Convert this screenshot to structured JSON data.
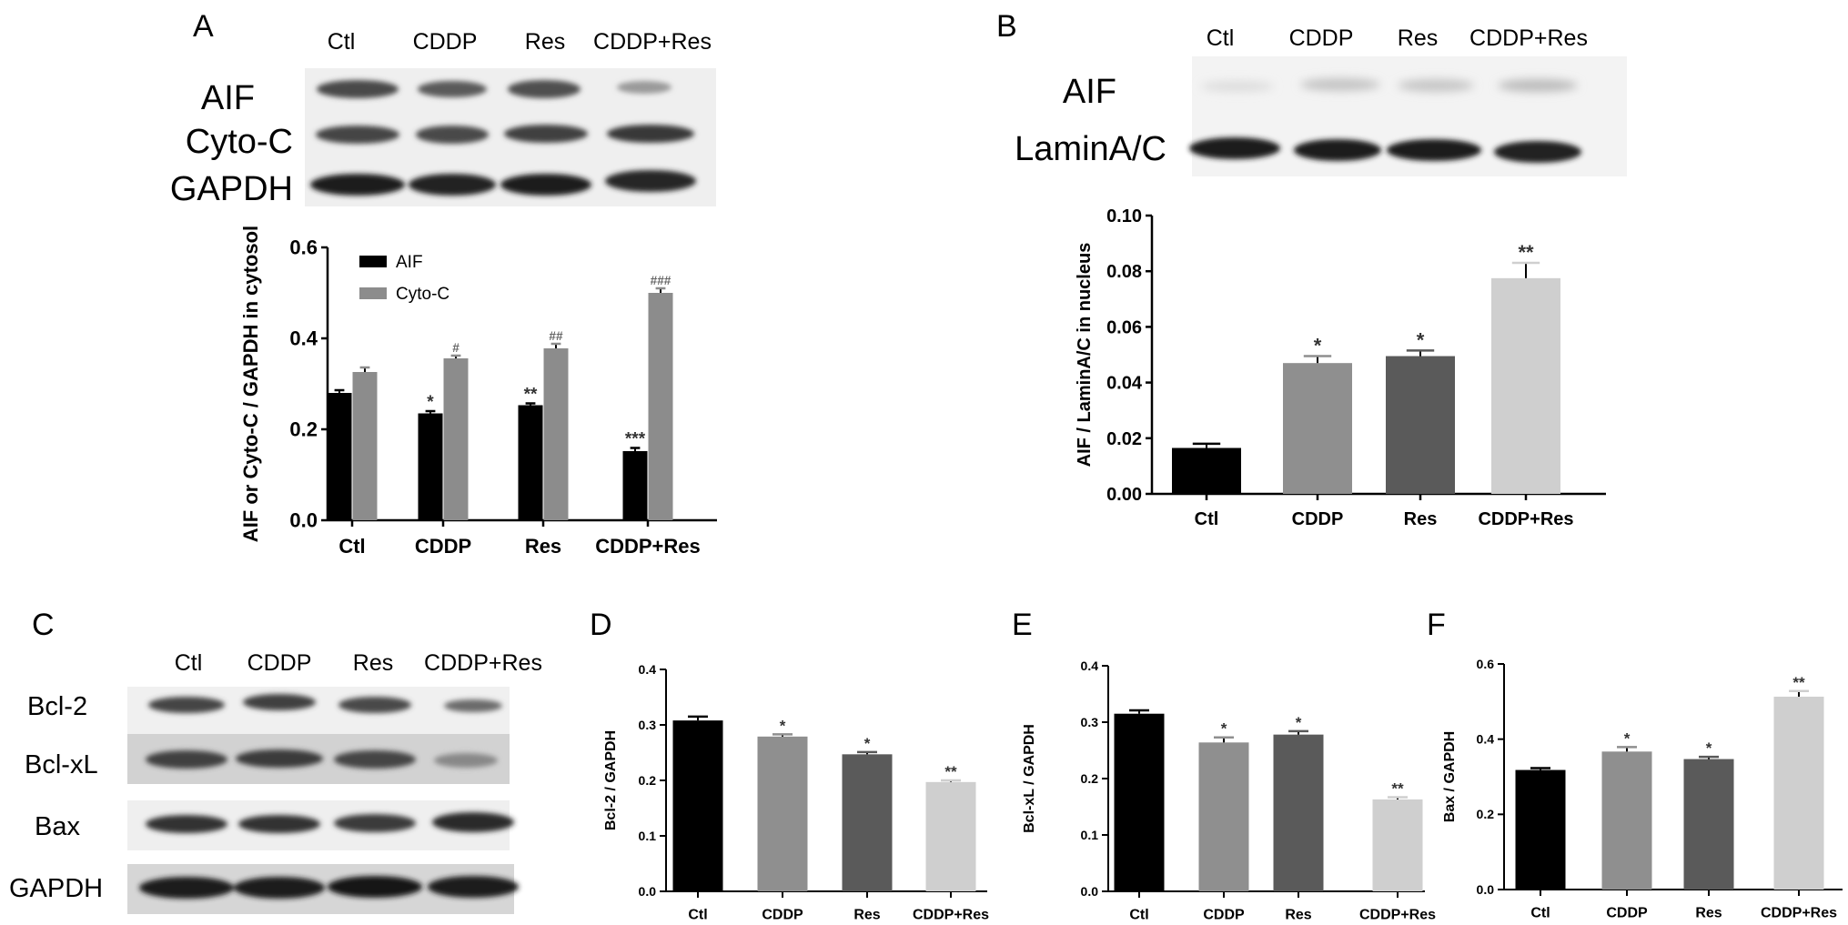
{
  "panel_letters": {
    "a": "A",
    "b": "B",
    "c": "C",
    "d": "D",
    "e": "E",
    "f": "F"
  },
  "blots": {
    "A": {
      "lanes": [
        "Ctl",
        "CDDP",
        "Res",
        "CDDP+Res"
      ],
      "rows": [
        "AIF",
        "Cyto-C",
        "GAPDH"
      ]
    },
    "B": {
      "lanes": [
        "Ctl",
        "CDDP",
        "Res",
        "CDDP+Res"
      ],
      "rows": [
        "AIF",
        "LaminA/C"
      ]
    },
    "C": {
      "lanes": [
        "Ctl",
        "CDDP",
        "Res",
        "CDDP+Res"
      ],
      "rows": [
        "Bcl-2",
        "Bcl-xL",
        "Bax",
        "GAPDH"
      ]
    }
  },
  "chart_data": [
    {
      "panel": "A",
      "type": "bar",
      "ylabel": "AIF or Cyto-C / GAPDH in cytosol",
      "categories": [
        "Ctl",
        "CDDP",
        "Res",
        "CDDP+Res"
      ],
      "ylim": [
        0,
        0.6
      ],
      "yticks": [
        "0.0",
        "0.2",
        "0.4",
        "0.6"
      ],
      "legend": "top-left",
      "series": [
        {
          "name": "AIF",
          "color": "#000000",
          "values": [
            0.28,
            0.235,
            0.253,
            0.152
          ],
          "errors": [
            0.006,
            0.005,
            0.004,
            0.007
          ],
          "marks": [
            "",
            "*",
            "**",
            "***"
          ]
        },
        {
          "name": "Cyto-C",
          "color": "#8c8c8c",
          "values": [
            0.326,
            0.356,
            0.378,
            0.5
          ],
          "errors": [
            0.01,
            0.006,
            0.01,
            0.01
          ],
          "marks": [
            "",
            "#",
            "##",
            "###"
          ]
        }
      ]
    },
    {
      "panel": "B",
      "type": "bar",
      "ylabel": "AIF / LaminA/C in nucleus",
      "categories": [
        "Ctl",
        "CDDP",
        "Res",
        "CDDP+Res"
      ],
      "ylim": [
        0,
        0.1
      ],
      "yticks": [
        "0.00",
        "0.02",
        "0.04",
        "0.06",
        "0.08",
        "0.10"
      ],
      "values": [
        0.0165,
        0.047,
        0.0495,
        0.0775
      ],
      "errors": [
        0.0015,
        0.0025,
        0.002,
        0.0055
      ],
      "colors": [
        "#000000",
        "#8f8f8f",
        "#5a5a5a",
        "#cfcfcf"
      ],
      "marks": [
        "",
        "*",
        "*",
        "**"
      ]
    },
    {
      "panel": "D",
      "type": "bar",
      "ylabel": "Bcl-2 / GAPDH",
      "categories": [
        "Ctl",
        "CDDP",
        "Res",
        "CDDP+Res"
      ],
      "ylim": [
        0,
        0.4
      ],
      "yticks": [
        "0.0",
        "0.1",
        "0.2",
        "0.3",
        "0.4"
      ],
      "values": [
        0.308,
        0.279,
        0.247,
        0.197
      ],
      "errors": [
        0.007,
        0.004,
        0.004,
        0.003
      ],
      "colors": [
        "#000000",
        "#8f8f8f",
        "#5a5a5a",
        "#cfcfcf"
      ],
      "marks": [
        "",
        "*",
        "*",
        "**"
      ]
    },
    {
      "panel": "E",
      "type": "bar",
      "ylabel": "Bcl-xL / GAPDH",
      "categories": [
        "Ctl",
        "CDDP",
        "Res",
        "CDDP+Res"
      ],
      "ylim": [
        0,
        0.4
      ],
      "yticks": [
        "0.0",
        "0.1",
        "0.2",
        "0.3",
        "0.4"
      ],
      "values": [
        0.315,
        0.264,
        0.278,
        0.163
      ],
      "errors": [
        0.006,
        0.009,
        0.006,
        0.004
      ],
      "colors": [
        "#000000",
        "#8f8f8f",
        "#5a5a5a",
        "#cfcfcf"
      ],
      "marks": [
        "",
        "*",
        "*",
        "**"
      ]
    },
    {
      "panel": "F",
      "type": "bar",
      "ylabel": "Bax / GAPDH",
      "categories": [
        "Ctl",
        "CDDP",
        "Res",
        "CDDP+Res"
      ],
      "ylim": [
        0,
        0.6
      ],
      "yticks": [
        "0.0",
        "0.2",
        "0.4",
        "0.6"
      ],
      "values": [
        0.318,
        0.367,
        0.347,
        0.513
      ],
      "errors": [
        0.005,
        0.012,
        0.006,
        0.015
      ],
      "colors": [
        "#000000",
        "#8f8f8f",
        "#5a5a5a",
        "#cfcfcf"
      ],
      "marks": [
        "",
        "*",
        "*",
        "**"
      ]
    }
  ]
}
